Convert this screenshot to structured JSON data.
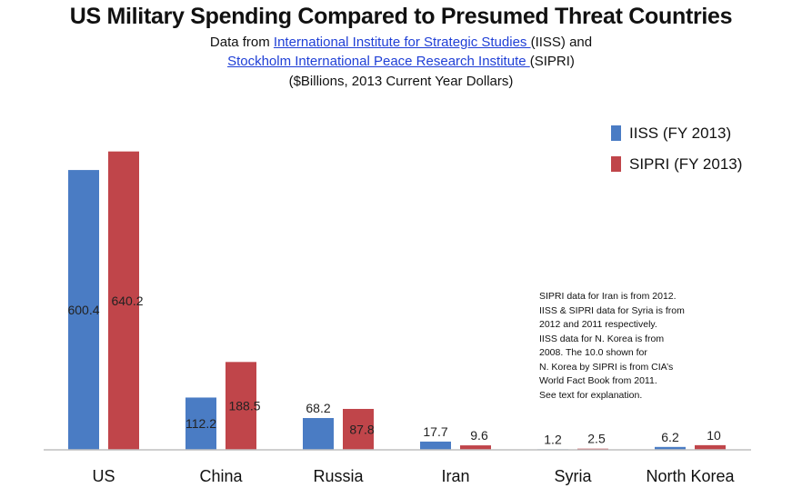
{
  "header": {
    "title": "US Military Spending Compared to Presumed Threat Countries",
    "line1_prefix": "Data from ",
    "line1_link": "International Institute for Strategic Studies ",
    "line1_suffix": "(IISS) and",
    "line2_link": "Stockholm International Peace Research Institute ",
    "line2_suffix": "(SIPRI)",
    "line3": "($Billions, 2013 Current Year Dollars)"
  },
  "note": {
    "lines": [
      "SIPRI data for Iran is from 2012.",
      "IISS & SIPRI data for Syria is from",
      "2012 and 2011 respectively.",
      "IISS data for N. Korea is from",
      "2008.  The 10.0 shown for",
      "N. Korea by SIPRI is from CIA’s",
      "World Fact Book from 2011.",
      "See text for explanation."
    ]
  },
  "chart_data": {
    "type": "bar",
    "title": "US Military Spending Compared to Presumed Threat Countries",
    "xlabel": "",
    "ylabel": "",
    "ylim": [
      0,
      700
    ],
    "grid": false,
    "legend_position": "top-right",
    "categories": [
      "US",
      "China",
      "Russia",
      "Iran",
      "Syria",
      "North Korea"
    ],
    "series": [
      {
        "name": "IISS (FY 2013)",
        "color": "#4a7cc4",
        "values": [
          600.4,
          112.2,
          68.2,
          17.7,
          1.2,
          6.2
        ],
        "labels": [
          "600.4",
          "112.2",
          "68.2",
          "17.7",
          "1.2",
          "6.2"
        ]
      },
      {
        "name": "SIPRI (FY 2013)",
        "color": "#c0454a",
        "values": [
          640.2,
          188.5,
          87.8,
          9.6,
          2.5,
          10
        ],
        "labels": [
          "640.2",
          "188.5",
          "87.8",
          "9.6",
          "2.5",
          "10"
        ]
      }
    ]
  }
}
